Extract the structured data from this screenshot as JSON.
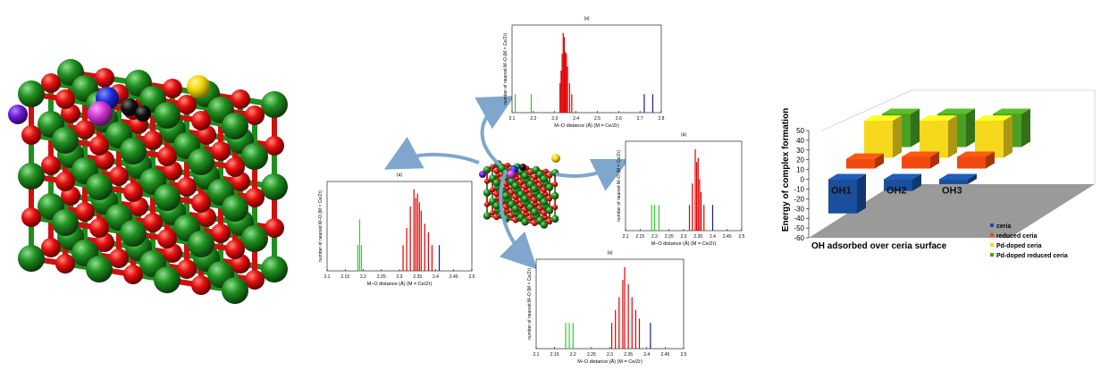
{
  "colors": {
    "ce_atom": "#1e8a1e",
    "o_atom": "#e01010",
    "h_atom_yellow": "#f2d400",
    "h_atom_blue": "#1a2ad8",
    "pd_atom": "#cc33cc",
    "arrow": "#7fa6cc",
    "hist_green": "#33cc33",
    "hist_red": "#e00000",
    "hist_blue": "#1a1aa0",
    "bar_ceria": "#1a4f9c",
    "bar_reduced": "#f04a10",
    "bar_pd": "#f6d81c",
    "bar_pd_reduced": "#4aa022",
    "floor": "#9a9a9a"
  },
  "histograms": [
    {
      "id": "hist-top",
      "title": "(a)",
      "xlabel": "M–O distance (Å) (M = Ce/Zr)",
      "ylabel": "number of nearest M–O (M = Ce/Zr)",
      "xlim": [
        2.1,
        2.8
      ],
      "ticks": [
        "2.1",
        "2.2",
        "2.3",
        "2.4",
        "2.5",
        "2.6",
        "2.7",
        "2.8"
      ],
      "bars": [
        {
          "x": 2.115,
          "h": 0.22,
          "c": "green"
        },
        {
          "x": 2.19,
          "h": 0.22,
          "c": "green"
        },
        {
          "x": 2.325,
          "h": 0.35,
          "c": "red"
        },
        {
          "x": 2.33,
          "h": 0.5,
          "c": "red"
        },
        {
          "x": 2.335,
          "h": 0.7,
          "c": "red"
        },
        {
          "x": 2.34,
          "h": 0.95,
          "c": "red"
        },
        {
          "x": 2.345,
          "h": 0.9,
          "c": "red"
        },
        {
          "x": 2.35,
          "h": 0.72,
          "c": "red"
        },
        {
          "x": 2.355,
          "h": 0.7,
          "c": "red"
        },
        {
          "x": 2.36,
          "h": 0.55,
          "c": "red"
        },
        {
          "x": 2.37,
          "h": 0.35,
          "c": "red"
        },
        {
          "x": 2.38,
          "h": 0.22,
          "c": "red"
        },
        {
          "x": 2.72,
          "h": 0.22,
          "c": "blue"
        },
        {
          "x": 2.76,
          "h": 0.22,
          "c": "blue"
        }
      ]
    },
    {
      "id": "hist-left",
      "title": "(a)",
      "xlabel": "M–O distance (Å) (M = Ce/Zr)",
      "ylabel": "number of nearest M–O (M = Ce/Zr)",
      "xlim": [
        2.1,
        2.5
      ],
      "ticks": [
        "2.1",
        "2.15",
        "2.2",
        "2.25",
        "2.3",
        "2.35",
        "2.4",
        "2.45",
        "2.5"
      ],
      "bars": [
        {
          "x": 2.185,
          "h": 0.3,
          "c": "green"
        },
        {
          "x": 2.19,
          "h": 0.6,
          "c": "green"
        },
        {
          "x": 2.195,
          "h": 0.3,
          "c": "green"
        },
        {
          "x": 2.31,
          "h": 0.3,
          "c": "red"
        },
        {
          "x": 2.32,
          "h": 0.5,
          "c": "red"
        },
        {
          "x": 2.33,
          "h": 0.75,
          "c": "red"
        },
        {
          "x": 2.34,
          "h": 0.95,
          "c": "red"
        },
        {
          "x": 2.345,
          "h": 0.85,
          "c": "red"
        },
        {
          "x": 2.35,
          "h": 0.9,
          "c": "red"
        },
        {
          "x": 2.355,
          "h": 0.8,
          "c": "red"
        },
        {
          "x": 2.36,
          "h": 0.7,
          "c": "red"
        },
        {
          "x": 2.37,
          "h": 0.55,
          "c": "red"
        },
        {
          "x": 2.38,
          "h": 0.45,
          "c": "red"
        },
        {
          "x": 2.39,
          "h": 0.3,
          "c": "red"
        },
        {
          "x": 2.41,
          "h": 0.3,
          "c": "blue"
        }
      ]
    },
    {
      "id": "hist-right",
      "title": "(a)",
      "xlabel": "M–O distance (Å) (M = Ce/Zr)",
      "ylabel": "number of nearest M–O (M = Ce/Zr)",
      "xlim": [
        2.1,
        2.5
      ],
      "ticks": [
        "2.1",
        "2.15",
        "2.2",
        "2.25",
        "2.3",
        "2.35",
        "2.4",
        "2.45",
        "2.5"
      ],
      "bars": [
        {
          "x": 2.19,
          "h": 0.3,
          "c": "green"
        },
        {
          "x": 2.2,
          "h": 0.3,
          "c": "green"
        },
        {
          "x": 2.215,
          "h": 0.3,
          "c": "green"
        },
        {
          "x": 2.32,
          "h": 0.3,
          "c": "red"
        },
        {
          "x": 2.33,
          "h": 0.55,
          "c": "red"
        },
        {
          "x": 2.34,
          "h": 0.95,
          "c": "red"
        },
        {
          "x": 2.345,
          "h": 0.8,
          "c": "red"
        },
        {
          "x": 2.35,
          "h": 0.85,
          "c": "red"
        },
        {
          "x": 2.355,
          "h": 0.6,
          "c": "red"
        },
        {
          "x": 2.36,
          "h": 0.45,
          "c": "red"
        },
        {
          "x": 2.37,
          "h": 0.3,
          "c": "red"
        },
        {
          "x": 2.4,
          "h": 0.3,
          "c": "blue"
        }
      ]
    },
    {
      "id": "hist-bottom",
      "title": "(a)",
      "xlabel": "M–O distance (Å) (M = Ce/Zr)",
      "ylabel": "number of nearest M–O (M = Ce/Zr)",
      "xlim": [
        2.1,
        2.5
      ],
      "ticks": [
        "2.1",
        "2.15",
        "2.2",
        "2.25",
        "2.3",
        "2.35",
        "2.4",
        "2.45",
        "2.5"
      ],
      "bars": [
        {
          "x": 2.18,
          "h": 0.3,
          "c": "green"
        },
        {
          "x": 2.19,
          "h": 0.3,
          "c": "green"
        },
        {
          "x": 2.2,
          "h": 0.3,
          "c": "green"
        },
        {
          "x": 2.305,
          "h": 0.3,
          "c": "red"
        },
        {
          "x": 2.315,
          "h": 0.45,
          "c": "red"
        },
        {
          "x": 2.325,
          "h": 0.6,
          "c": "red"
        },
        {
          "x": 2.335,
          "h": 0.8,
          "c": "red"
        },
        {
          "x": 2.34,
          "h": 0.95,
          "c": "red"
        },
        {
          "x": 2.35,
          "h": 0.75,
          "c": "red"
        },
        {
          "x": 2.36,
          "h": 0.6,
          "c": "red"
        },
        {
          "x": 2.37,
          "h": 0.45,
          "c": "red"
        },
        {
          "x": 2.38,
          "h": 0.35,
          "c": "red"
        },
        {
          "x": 2.41,
          "h": 0.3,
          "c": "blue"
        }
      ]
    }
  ],
  "chart_data": {
    "type": "bar",
    "title": "",
    "ylabel": "Energy of complex formation",
    "xlabel": "OH adsorbed over ceria surface",
    "categories": [
      "OH1",
      "OH2",
      "OH3"
    ],
    "ylim": [
      -60,
      50
    ],
    "yticks": [
      "50",
      "40",
      "30",
      "20",
      "10",
      "0",
      "-10",
      "-20",
      "-30",
      "-40",
      "-50",
      "-60"
    ],
    "series": [
      {
        "name": "ceria",
        "values": [
          -35,
          -12,
          -5
        ]
      },
      {
        "name": "reduced ceria",
        "values": [
          10,
          12,
          12
        ]
      },
      {
        "name": "Pd-doped ceria",
        "values": [
          38,
          38,
          38
        ]
      },
      {
        "name": "Pd-doped reduced ceria",
        "values": [
          34,
          34,
          34
        ]
      }
    ],
    "legend": [
      "ceria",
      "reduced ceria",
      "Pd-doped ceria",
      "Pd-doped reduced ceria"
    ],
    "legend_placement": "bottom-right",
    "grid": false
  }
}
